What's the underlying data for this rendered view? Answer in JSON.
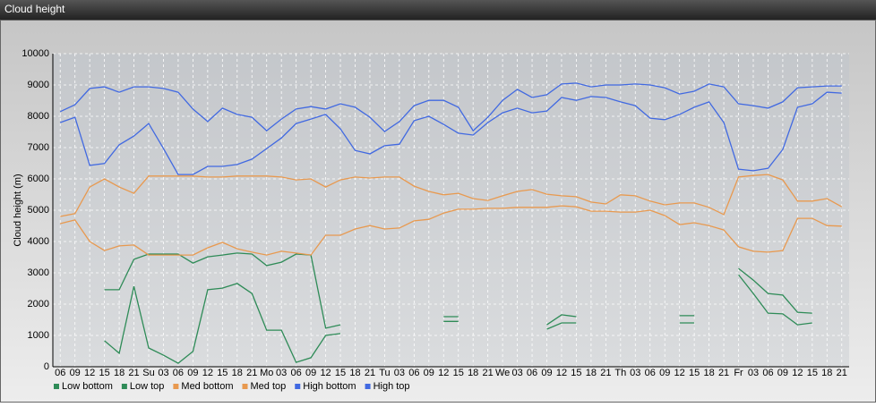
{
  "chart_data": {
    "type": "line",
    "title": "Cloud height",
    "ylabel": "Cloud height (m)",
    "categories": [
      "06",
      "09",
      "12",
      "15",
      "18",
      "21",
      "Su",
      "03",
      "06",
      "09",
      "12",
      "15",
      "18",
      "21",
      "Mo",
      "03",
      "06",
      "09",
      "12",
      "15",
      "18",
      "21",
      "Tu",
      "03",
      "06",
      "09",
      "12",
      "15",
      "18",
      "21",
      "We",
      "03",
      "06",
      "09",
      "12",
      "15",
      "18",
      "21",
      "Th",
      "03",
      "06",
      "09",
      "12",
      "15",
      "18",
      "21",
      "Fr",
      "03",
      "06",
      "09",
      "12",
      "15",
      "18",
      "21"
    ],
    "ylim": [
      0,
      10000
    ],
    "yticks": [
      0,
      1000,
      2000,
      3000,
      4000,
      5000,
      6000,
      7000,
      8000,
      9000,
      10000
    ],
    "grid": true,
    "series": [
      {
        "name": "Low bottom",
        "color": "#2e8b57",
        "values": [
          null,
          null,
          null,
          830,
          430,
          2570,
          600,
          370,
          110,
          490,
          2460,
          2510,
          2660,
          2340,
          1170,
          1170,
          140,
          290,
          1000,
          1060,
          null,
          null,
          null,
          null,
          null,
          null,
          1450,
          1450,
          null,
          null,
          null,
          null,
          null,
          1200,
          1400,
          1400,
          null,
          null,
          null,
          null,
          null,
          null,
          1400,
          1400,
          null,
          null,
          2940,
          2340,
          1710,
          1690,
          1340,
          1400,
          null,
          null
        ]
      },
      {
        "name": "Low top",
        "color": "#2e8b57",
        "values": [
          null,
          null,
          null,
          2460,
          2460,
          3430,
          3600,
          3600,
          3600,
          3310,
          3510,
          3570,
          3630,
          3600,
          3230,
          3340,
          3600,
          3570,
          1230,
          1340,
          null,
          null,
          null,
          null,
          null,
          null,
          1600,
          1600,
          null,
          null,
          null,
          null,
          null,
          1340,
          1660,
          1600,
          null,
          null,
          null,
          null,
          null,
          null,
          1630,
          1630,
          null,
          null,
          3140,
          2770,
          2340,
          2290,
          1740,
          1710,
          null,
          null
        ]
      },
      {
        "name": "Med bottom",
        "color": "#e8994f",
        "values": [
          4570,
          4690,
          4000,
          3710,
          3860,
          3890,
          3570,
          3570,
          3570,
          3570,
          3800,
          3970,
          3770,
          3660,
          3570,
          3690,
          3630,
          3570,
          4200,
          4200,
          4400,
          4510,
          4400,
          4430,
          4660,
          4710,
          4910,
          5030,
          5030,
          5060,
          5060,
          5090,
          5090,
          5090,
          5140,
          5110,
          4970,
          4970,
          4940,
          4940,
          5000,
          4830,
          4540,
          4600,
          4510,
          4370,
          3830,
          3690,
          3660,
          3710,
          4740,
          4740,
          4510,
          4490
        ]
      },
      {
        "name": "Med top",
        "color": "#e8994f",
        "values": [
          4800,
          4890,
          5740,
          6000,
          5740,
          5540,
          6090,
          6090,
          6090,
          6090,
          6060,
          6060,
          6090,
          6090,
          6090,
          6060,
          5970,
          6000,
          5740,
          5970,
          6060,
          6030,
          6060,
          6060,
          5770,
          5600,
          5490,
          5540,
          5370,
          5310,
          5460,
          5600,
          5660,
          5510,
          5460,
          5430,
          5260,
          5200,
          5490,
          5460,
          5290,
          5170,
          5230,
          5230,
          5090,
          4860,
          6060,
          6110,
          6140,
          5970,
          5290,
          5290,
          5370,
          5110
        ]
      },
      {
        "name": "High bottom",
        "color": "#4169e1",
        "values": [
          7800,
          7970,
          6430,
          6490,
          7090,
          7370,
          7770,
          6970,
          6140,
          6140,
          6400,
          6400,
          6460,
          6630,
          6970,
          7310,
          7770,
          7910,
          8060,
          7600,
          6910,
          6800,
          7060,
          7110,
          7860,
          8000,
          7740,
          7460,
          7400,
          7800,
          8110,
          8260,
          8110,
          8170,
          8600,
          8510,
          8630,
          8600,
          8460,
          8340,
          7940,
          7890,
          8060,
          8290,
          8460,
          7800,
          6310,
          6260,
          6340,
          6940,
          8290,
          8400,
          8770,
          8740
        ]
      },
      {
        "name": "High top",
        "color": "#4169e1",
        "values": [
          8150,
          8370,
          8890,
          8940,
          8770,
          8940,
          8940,
          8890,
          8770,
          8230,
          7830,
          8260,
          8060,
          7970,
          7540,
          7910,
          8230,
          8310,
          8230,
          8400,
          8290,
          7970,
          7510,
          7830,
          8340,
          8510,
          8510,
          8290,
          7540,
          7970,
          8510,
          8860,
          8600,
          8690,
          9030,
          9060,
          8940,
          9000,
          9000,
          9030,
          9000,
          8910,
          8710,
          8800,
          9030,
          8940,
          8400,
          8340,
          8260,
          8460,
          8910,
          8940,
          8970,
          8970
        ]
      }
    ]
  }
}
